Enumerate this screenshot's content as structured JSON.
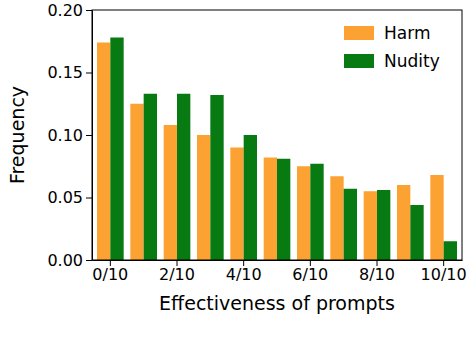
{
  "chart_data": {
    "type": "bar",
    "x_label": "Effectiveness of prompts",
    "y_label": "Frequency",
    "categories": [
      "0/10",
      null,
      "2/10",
      null,
      "4/10",
      null,
      "6/10",
      null,
      "8/10",
      null,
      "10/10"
    ],
    "series": [
      {
        "name": "Harm",
        "color": "#fca233",
        "values": [
          0.174,
          0.125,
          0.108,
          0.1,
          0.09,
          0.082,
          0.075,
          0.067,
          0.055,
          0.06,
          0.068
        ]
      },
      {
        "name": "Nudity",
        "color": "#087a12",
        "values": [
          0.178,
          0.133,
          0.133,
          0.132,
          0.1,
          0.081,
          0.077,
          0.057,
          0.056,
          0.044,
          0.015
        ]
      }
    ],
    "ylim": [
      0,
      0.2
    ],
    "yticks": [
      {
        "value": 0,
        "label": "0.00"
      },
      {
        "value": 0.05,
        "label": "0.05"
      },
      {
        "value": 0.1,
        "label": "0.10"
      },
      {
        "value": 0.15,
        "label": "0.15"
      },
      {
        "value": 0.2,
        "label": "0.20"
      }
    ],
    "legend": "upper right"
  }
}
